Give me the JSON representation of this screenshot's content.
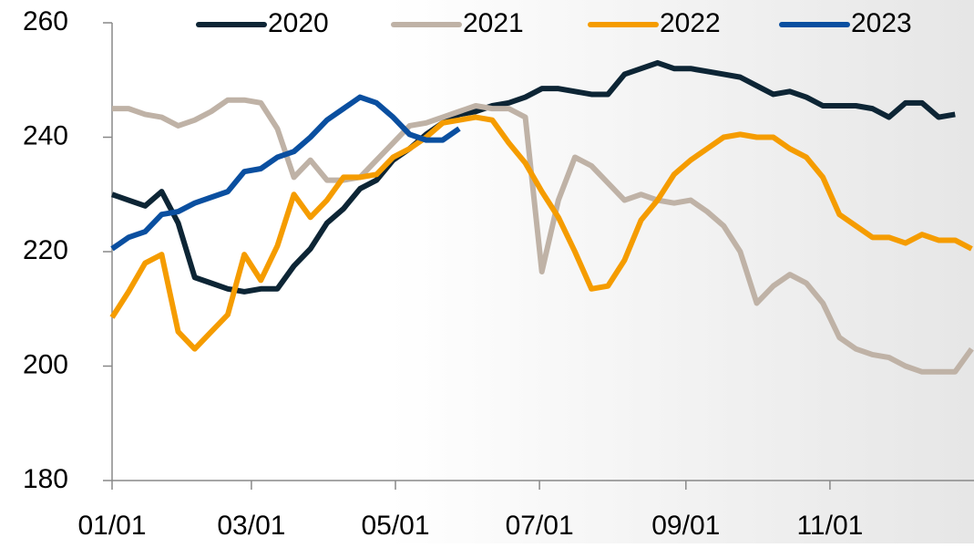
{
  "chart_data": {
    "type": "line",
    "x": [
      0,
      7,
      14,
      21,
      28,
      35,
      42,
      49,
      56,
      63,
      70,
      77,
      84,
      91,
      98,
      105,
      112,
      119,
      126,
      133,
      140,
      147,
      154,
      161,
      168,
      175,
      182,
      189,
      196,
      203,
      210,
      217,
      224,
      231,
      238,
      245,
      252,
      259,
      266,
      273,
      280,
      287,
      294,
      301,
      308,
      315,
      322,
      329,
      336,
      343,
      350,
      357,
      364
    ],
    "xlim": [
      0,
      365
    ],
    "xticks": [
      {
        "value": 0,
        "label": "01/01"
      },
      {
        "value": 59,
        "label": "03/01"
      },
      {
        "value": 120,
        "label": "05/01"
      },
      {
        "value": 181,
        "label": "07/01"
      },
      {
        "value": 243,
        "label": "09/01"
      },
      {
        "value": 304,
        "label": "11/01"
      }
    ],
    "ylim": [
      180,
      260
    ],
    "yticks": [
      180,
      200,
      220,
      240,
      260
    ],
    "grid": false,
    "legend": "top",
    "series": [
      {
        "name": "2020",
        "color": "#0d2535",
        "values": [
          230,
          229,
          228,
          230.5,
          225,
          215.5,
          214.5,
          213.5,
          213,
          213.5,
          213.5,
          217.5,
          220.5,
          225,
          227.5,
          231,
          232.5,
          236,
          238,
          240.5,
          242.5,
          244,
          244.5,
          245.5,
          246,
          247,
          248.5,
          248.5,
          248,
          247.5,
          247.5,
          251,
          252,
          253,
          252,
          252,
          251.5,
          251,
          250.5,
          249,
          247.5,
          248,
          247,
          245.5,
          245.5,
          245.5,
          245,
          243.5,
          246,
          246,
          243.5,
          244,
          null
        ]
      },
      {
        "name": "2021",
        "color": "#bfb2a6",
        "values": [
          245,
          245,
          244,
          243.5,
          242,
          243,
          244.5,
          246.5,
          246.5,
          246,
          241.5,
          233,
          236,
          232.5,
          232.5,
          233,
          236,
          239,
          242,
          242.5,
          243.5,
          244.5,
          245.5,
          245,
          245,
          243.5,
          216.5,
          229,
          236.5,
          235,
          232,
          229,
          230,
          229,
          228.5,
          229,
          227,
          224.5,
          220,
          211,
          214,
          216,
          214.5,
          211,
          205,
          203,
          202,
          201.5,
          200,
          199,
          199,
          199,
          203
        ]
      },
      {
        "name": "2022",
        "color": "#f59c00",
        "values": [
          208.5,
          213,
          218,
          219.5,
          206,
          203,
          206,
          209,
          219.5,
          215,
          221,
          230,
          226,
          229,
          233,
          233,
          233.5,
          236.5,
          238,
          240,
          242.5,
          243,
          243.5,
          243,
          239,
          235.5,
          230.5,
          226,
          220,
          213.5,
          214,
          218.5,
          225.5,
          229,
          233.5,
          236,
          238,
          240,
          240.5,
          240,
          240,
          238,
          236.5,
          233,
          226.5,
          224.5,
          222.5,
          222.5,
          221.5,
          223,
          222,
          222,
          220.5
        ]
      },
      {
        "name": "2023",
        "color": "#0a4fa0",
        "values": [
          220.5,
          222.5,
          223.5,
          226.5,
          227,
          228.5,
          229.5,
          230.5,
          234,
          234.5,
          236.5,
          237.5,
          240,
          243,
          245,
          247,
          246,
          243.5,
          240.5,
          239.5,
          239.5,
          241.5,
          null,
          null,
          null,
          null,
          null,
          null,
          null,
          null,
          null,
          null,
          null,
          null,
          null,
          null,
          null,
          null,
          null,
          null,
          null,
          null,
          null,
          null,
          null,
          null,
          null,
          null,
          null,
          null,
          null,
          null,
          null
        ]
      }
    ]
  }
}
